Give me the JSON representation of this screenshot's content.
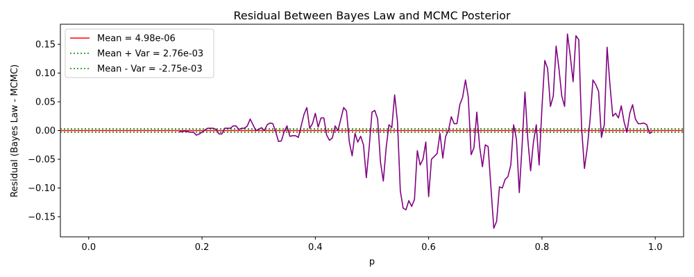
{
  "chart_data": {
    "type": "line",
    "title": "Residual Between Bayes Law and MCMC Posterior",
    "xlabel": "p",
    "ylabel": "Residual (Bayes Law - MCMC)",
    "xlim": [
      -0.05,
      1.05
    ],
    "ylim": [
      -0.185,
      0.185
    ],
    "xticks": [
      0.0,
      0.2,
      0.4,
      0.6,
      0.8,
      1.0
    ],
    "xtick_labels": [
      "0.0",
      "0.2",
      "0.4",
      "0.6",
      "0.8",
      "1.0"
    ],
    "yticks": [
      -0.15,
      -0.1,
      -0.05,
      0.0,
      0.05,
      0.1,
      0.15
    ],
    "ytick_labels": [
      "−0.15",
      "−0.10",
      "−0.05",
      "0.00",
      "0.05",
      "0.10",
      "0.15"
    ],
    "grid": false,
    "legend_position": "top-left",
    "series": [
      {
        "name": "",
        "color": "#800080",
        "style": "solid",
        "x": [
          0.16,
          0.165,
          0.17,
          0.175,
          0.18,
          0.185,
          0.19,
          0.195,
          0.2,
          0.205,
          0.21,
          0.215,
          0.22,
          0.225,
          0.23,
          0.235,
          0.24,
          0.245,
          0.25,
          0.255,
          0.26,
          0.265,
          0.27,
          0.275,
          0.28,
          0.285,
          0.29,
          0.295,
          0.3,
          0.305,
          0.31,
          0.315,
          0.32,
          0.325,
          0.33,
          0.335,
          0.34,
          0.345,
          0.35,
          0.355,
          0.36,
          0.365,
          0.37,
          0.375,
          0.38,
          0.385,
          0.39,
          0.395,
          0.4,
          0.405,
          0.41,
          0.415,
          0.42,
          0.425,
          0.43,
          0.435,
          0.44,
          0.445,
          0.45,
          0.455,
          0.46,
          0.465,
          0.47,
          0.475,
          0.48,
          0.485,
          0.49,
          0.495,
          0.5,
          0.505,
          0.51,
          0.515,
          0.52,
          0.525,
          0.53,
          0.535,
          0.54,
          0.545,
          0.55,
          0.555,
          0.56,
          0.565,
          0.57,
          0.575,
          0.58,
          0.585,
          0.59,
          0.595,
          0.6,
          0.605,
          0.61,
          0.615,
          0.62,
          0.625,
          0.63,
          0.635,
          0.64,
          0.645,
          0.65,
          0.655,
          0.66,
          0.665,
          0.67,
          0.675,
          0.68,
          0.685,
          0.69,
          0.695,
          0.7,
          0.705,
          0.71,
          0.715,
          0.72,
          0.725,
          0.73,
          0.735,
          0.74,
          0.745,
          0.75,
          0.755,
          0.76,
          0.765,
          0.77,
          0.775,
          0.78,
          0.785,
          0.79,
          0.795,
          0.8,
          0.805,
          0.81,
          0.815,
          0.82,
          0.825,
          0.83,
          0.835,
          0.84,
          0.845,
          0.85,
          0.855,
          0.86,
          0.865,
          0.87,
          0.875,
          0.88,
          0.885,
          0.89,
          0.895,
          0.9,
          0.905,
          0.91,
          0.915,
          0.92,
          0.925,
          0.93,
          0.935,
          0.94,
          0.945,
          0.95,
          0.955,
          0.96,
          0.965,
          0.97,
          0.975,
          0.98,
          0.985,
          0.99,
          0.995
        ],
        "values": [
          -0.002,
          -0.002,
          -0.001,
          -0.002,
          -0.003,
          -0.003,
          -0.008,
          -0.006,
          -0.003,
          0.001,
          0.004,
          0.004,
          0.004,
          0.002,
          -0.006,
          -0.006,
          0.004,
          0.004,
          0.004,
          0.008,
          0.008,
          0.002,
          0.004,
          0.004,
          0.008,
          0.02,
          0.01,
          0.0,
          0.002,
          0.005,
          0.0,
          0.01,
          0.013,
          0.012,
          -0.002,
          -0.019,
          -0.018,
          -0.002,
          0.008,
          -0.01,
          -0.009,
          -0.009,
          -0.012,
          0.008,
          0.028,
          0.04,
          0.004,
          0.012,
          0.03,
          0.006,
          0.022,
          0.022,
          -0.008,
          -0.017,
          -0.013,
          0.008,
          0.0,
          0.02,
          0.04,
          0.034,
          -0.02,
          -0.044,
          -0.005,
          -0.02,
          -0.01,
          -0.025,
          -0.082,
          -0.03,
          0.032,
          0.035,
          0.02,
          -0.055,
          -0.088,
          -0.03,
          0.01,
          0.005,
          0.062,
          0.015,
          -0.105,
          -0.135,
          -0.138,
          -0.122,
          -0.132,
          -0.12,
          -0.035,
          -0.06,
          -0.05,
          -0.02,
          -0.115,
          -0.05,
          -0.045,
          -0.04,
          -0.005,
          -0.048,
          -0.01,
          0.0,
          0.024,
          0.012,
          0.012,
          0.045,
          0.058,
          0.088,
          0.058,
          -0.042,
          -0.03,
          0.032,
          -0.028,
          -0.063,
          -0.025,
          -0.028,
          -0.1,
          -0.17,
          -0.158,
          -0.098,
          -0.1,
          -0.085,
          -0.08,
          -0.06,
          0.01,
          -0.015,
          -0.108,
          -0.025,
          0.067,
          -0.015,
          -0.07,
          -0.02,
          0.01,
          -0.06,
          0.04,
          0.122,
          0.108,
          0.042,
          0.06,
          0.147,
          0.108,
          0.06,
          0.042,
          0.168,
          0.13,
          0.085,
          0.165,
          0.158,
          0.005,
          -0.066,
          -0.03,
          0.02,
          0.088,
          0.08,
          0.068,
          -0.012,
          0.01,
          0.145,
          0.08,
          0.025,
          0.03,
          0.022,
          0.043,
          0.015,
          -0.003,
          0.03,
          0.045,
          0.02,
          0.012,
          0.012,
          0.013,
          0.01,
          -0.005,
          -0.002
        ]
      },
      {
        "name": "Mean = 4.98e-06",
        "color": "#ff0000",
        "style": "solid",
        "constant": 4.98e-06
      },
      {
        "name": "Mean + Var = 2.76e-03",
        "color": "#008000",
        "style": "dotted",
        "constant": 0.00276
      },
      {
        "name": "Mean - Var = -2.75e-03",
        "color": "#008000",
        "style": "dotted",
        "constant": -0.00275
      }
    ]
  }
}
